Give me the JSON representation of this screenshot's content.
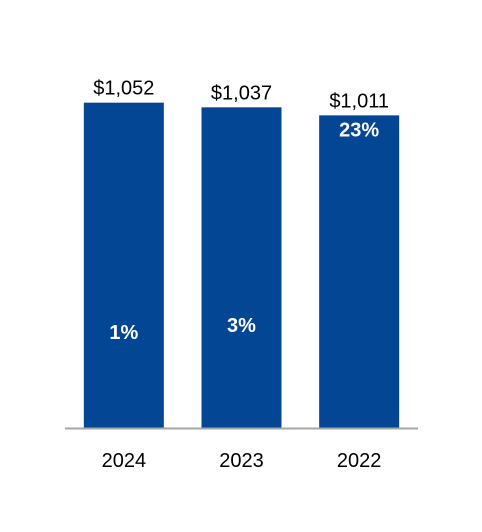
{
  "chart_data": {
    "type": "bar",
    "categories": [
      "2024",
      "2023",
      "2022"
    ],
    "values": [
      1052,
      1037,
      1011
    ],
    "value_labels": [
      "$1,052",
      "$1,037",
      "$1,011"
    ],
    "pct_labels": [
      "1%",
      "3%",
      "23%"
    ],
    "ylim": [
      0,
      1080
    ],
    "bar_color": "#034694",
    "axis_color": "#a6a6a6",
    "title": "",
    "xlabel": "",
    "ylabel": "",
    "grid": false,
    "legend": "none"
  }
}
